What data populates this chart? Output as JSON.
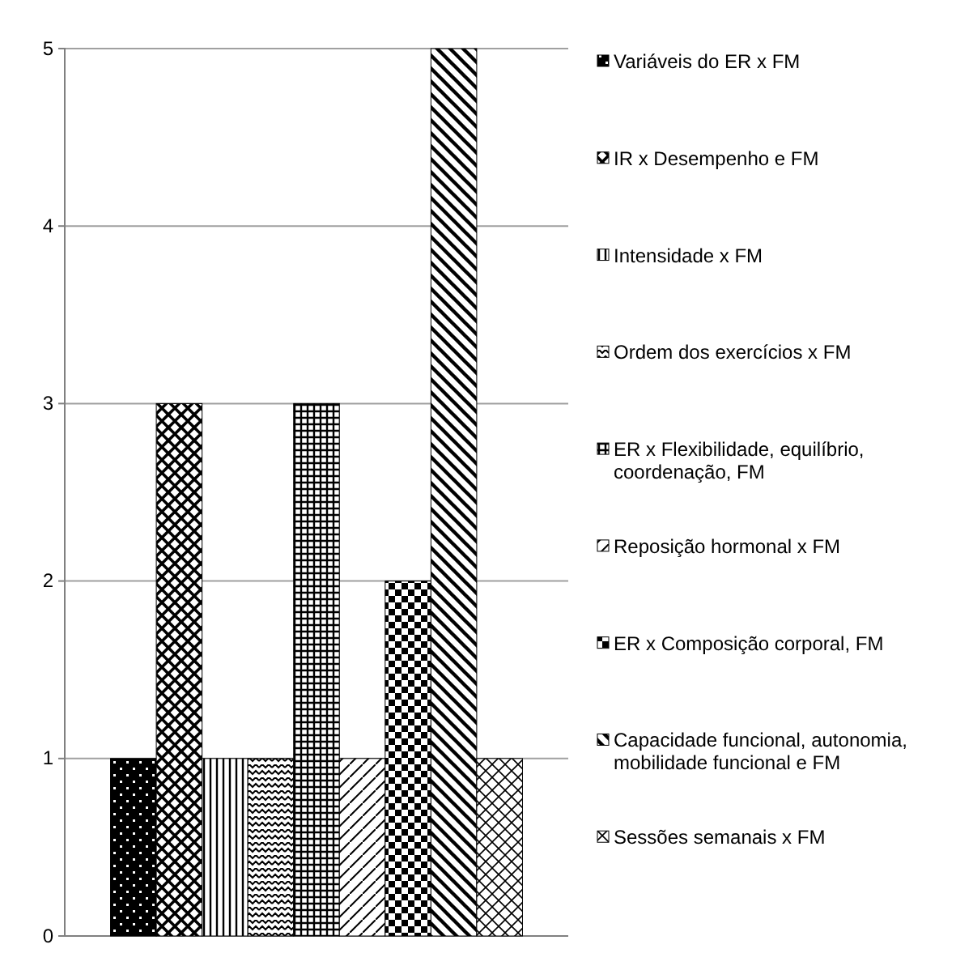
{
  "chart_data": {
    "type": "bar",
    "categories": [
      null
    ],
    "series": [
      {
        "name": "Variáveis do ER x FM",
        "color": "#000000",
        "values": [
          1
        ]
      },
      {
        "name": "IR x Desempenho e FM",
        "color": "#000000",
        "values": [
          3
        ]
      },
      {
        "name": "Intensidade x FM",
        "color": "#000000",
        "values": [
          1
        ]
      },
      {
        "name": "Ordem dos exercícios x FM",
        "color": "#000000",
        "values": [
          1
        ]
      },
      {
        "name": "ER x Flexibilidade, equilíbrio, coordenação, FM",
        "color": "#000000",
        "values": [
          3
        ]
      },
      {
        "name": "Reposição hormonal x FM",
        "color": "#000000",
        "values": [
          1
        ]
      },
      {
        "name": "ER x Composição corporal, FM",
        "color": "#000000",
        "values": [
          2
        ]
      },
      {
        "name": "Capacidade funcional, autonomia, mobilidade funcional e FM",
        "color": "#000000",
        "values": [
          5
        ]
      },
      {
        "name": "Sessões semanais x FM",
        "color": "#000000",
        "values": [
          1
        ]
      }
    ],
    "ylim": [
      0,
      5
    ],
    "yticks": [
      0,
      1,
      2,
      3,
      4,
      5
    ],
    "grid": "y",
    "legend": "right"
  }
}
